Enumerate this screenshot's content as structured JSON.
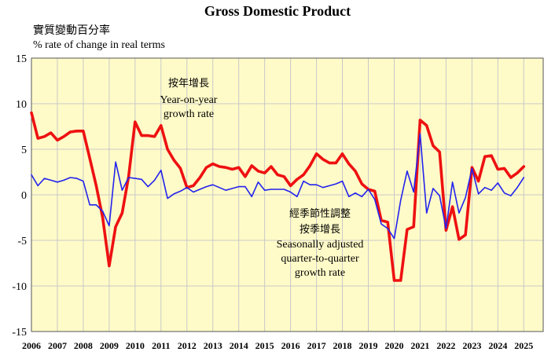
{
  "chart_data": {
    "type": "line",
    "title": "Gross Domestic Product",
    "ylabel_zh": "實質變動百分率",
    "ylabel": "% rate of change in real terms",
    "ylim": [
      -15,
      15
    ],
    "yticks": [
      15,
      10,
      5,
      0,
      -5,
      -10,
      -15
    ],
    "x_range": [
      2006,
      2025.75
    ],
    "year_labels": [
      "2006",
      "2007",
      "2008",
      "2009",
      "2010",
      "2011",
      "2012",
      "2013",
      "2014",
      "2015",
      "2016",
      "2017",
      "2018",
      "2019",
      "2020",
      "2021",
      "2022",
      "2023",
      "2024",
      "2025"
    ],
    "grid": true,
    "background": "#FFFBC8",
    "series": [
      {
        "name_zh": "按年增長",
        "name": "Year-on-year growth rate",
        "color": "#EE1111",
        "x": [
          2006.0,
          2006.25,
          2006.5,
          2006.75,
          2007.0,
          2007.25,
          2007.5,
          2007.75,
          2008.0,
          2008.25,
          2008.5,
          2008.75,
          2009.0,
          2009.25,
          2009.5,
          2009.75,
          2010.0,
          2010.25,
          2010.5,
          2010.75,
          2011.0,
          2011.25,
          2011.5,
          2011.75,
          2012.0,
          2012.25,
          2012.5,
          2012.75,
          2013.0,
          2013.25,
          2013.5,
          2013.75,
          2014.0,
          2014.25,
          2014.5,
          2014.75,
          2015.0,
          2015.25,
          2015.5,
          2015.75,
          2016.0,
          2016.25,
          2016.5,
          2016.75,
          2017.0,
          2017.25,
          2017.5,
          2017.75,
          2018.0,
          2018.25,
          2018.5,
          2018.75,
          2019.0,
          2019.25,
          2019.5,
          2019.75,
          2020.0,
          2020.25,
          2020.5,
          2020.75,
          2021.0,
          2021.25,
          2021.5,
          2021.75,
          2022.0,
          2022.25,
          2022.5,
          2022.75,
          2023.0,
          2023.25,
          2023.5,
          2023.75,
          2024.0,
          2024.25,
          2024.5,
          2024.75,
          2025.0
        ],
        "values": [
          9.0,
          6.2,
          6.4,
          6.8,
          6.0,
          6.4,
          6.9,
          7.0,
          7.0,
          4.0,
          1.0,
          -2.5,
          -7.8,
          -3.5,
          -2.0,
          2.0,
          8.0,
          6.5,
          6.5,
          6.4,
          7.6,
          5.0,
          3.8,
          2.9,
          0.8,
          1.0,
          1.9,
          3.0,
          3.4,
          3.1,
          3.0,
          2.8,
          3.0,
          2.0,
          3.2,
          2.6,
          2.4,
          3.1,
          2.2,
          2.0,
          1.0,
          1.7,
          2.2,
          3.2,
          4.5,
          3.9,
          3.5,
          3.5,
          4.5,
          3.4,
          2.6,
          1.2,
          0.6,
          0.4,
          -2.8,
          -3.0,
          -9.4,
          -9.4,
          -3.8,
          -3.5,
          8.2,
          7.6,
          5.4,
          4.7,
          -3.9,
          -1.3,
          -4.9,
          -4.4,
          3.0,
          1.5,
          4.2,
          4.3,
          2.8,
          2.9,
          1.9,
          2.4,
          3.1
        ]
      },
      {
        "name_zh": "經季節性調整 按季增長",
        "name": "Seasonally adjusted quarter-to-quarter growth rate",
        "color": "#2222EE",
        "x": [
          2006.0,
          2006.25,
          2006.5,
          2006.75,
          2007.0,
          2007.25,
          2007.5,
          2007.75,
          2008.0,
          2008.25,
          2008.5,
          2008.75,
          2009.0,
          2009.25,
          2009.5,
          2009.75,
          2010.0,
          2010.25,
          2010.5,
          2010.75,
          2011.0,
          2011.25,
          2011.5,
          2011.75,
          2012.0,
          2012.25,
          2012.5,
          2012.75,
          2013.0,
          2013.25,
          2013.5,
          2013.75,
          2014.0,
          2014.25,
          2014.5,
          2014.75,
          2015.0,
          2015.25,
          2015.5,
          2015.75,
          2016.0,
          2016.25,
          2016.5,
          2016.75,
          2017.0,
          2017.25,
          2017.5,
          2017.75,
          2018.0,
          2018.25,
          2018.5,
          2018.75,
          2019.0,
          2019.25,
          2019.5,
          2019.75,
          2020.0,
          2020.25,
          2020.5,
          2020.75,
          2021.0,
          2021.25,
          2021.5,
          2021.75,
          2022.0,
          2022.25,
          2022.5,
          2022.75,
          2023.0,
          2023.25,
          2023.5,
          2023.75,
          2024.0,
          2024.25,
          2024.5,
          2024.75,
          2025.0
        ],
        "values": [
          2.2,
          1.0,
          1.8,
          1.6,
          1.4,
          1.6,
          1.9,
          1.8,
          1.5,
          -1.1,
          -1.1,
          -1.8,
          -3.4,
          3.6,
          0.5,
          1.9,
          1.8,
          1.7,
          0.9,
          1.6,
          2.7,
          -0.4,
          0.1,
          0.4,
          0.8,
          0.3,
          0.6,
          0.9,
          1.1,
          0.8,
          0.5,
          0.7,
          0.9,
          0.9,
          -0.2,
          1.4,
          0.5,
          0.6,
          0.6,
          0.6,
          0.3,
          -0.2,
          1.5,
          1.1,
          1.1,
          0.8,
          1.0,
          1.2,
          1.5,
          -0.2,
          0.2,
          -0.2,
          0.6,
          -0.5,
          -3.2,
          -3.7,
          -4.8,
          -0.6,
          2.6,
          0.3,
          6.7,
          -2.0,
          0.7,
          -0.1,
          -3.7,
          1.4,
          -2.0,
          -0.3,
          2.9,
          0.1,
          0.8,
          0.5,
          1.3,
          0.2,
          -0.1,
          0.8,
          1.9
        ]
      }
    ],
    "annotations": {
      "yoy_zh": "按年增長",
      "yoy_en_1": "Year-on-year",
      "yoy_en_2": "growth rate",
      "qoq_zh_1": "經季節性調整",
      "qoq_zh_2": "按季增長",
      "qoq_en_1": "Seasonally adjusted",
      "qoq_en_2": "quarter-to-quarter",
      "qoq_en_3": "growth rate"
    }
  }
}
